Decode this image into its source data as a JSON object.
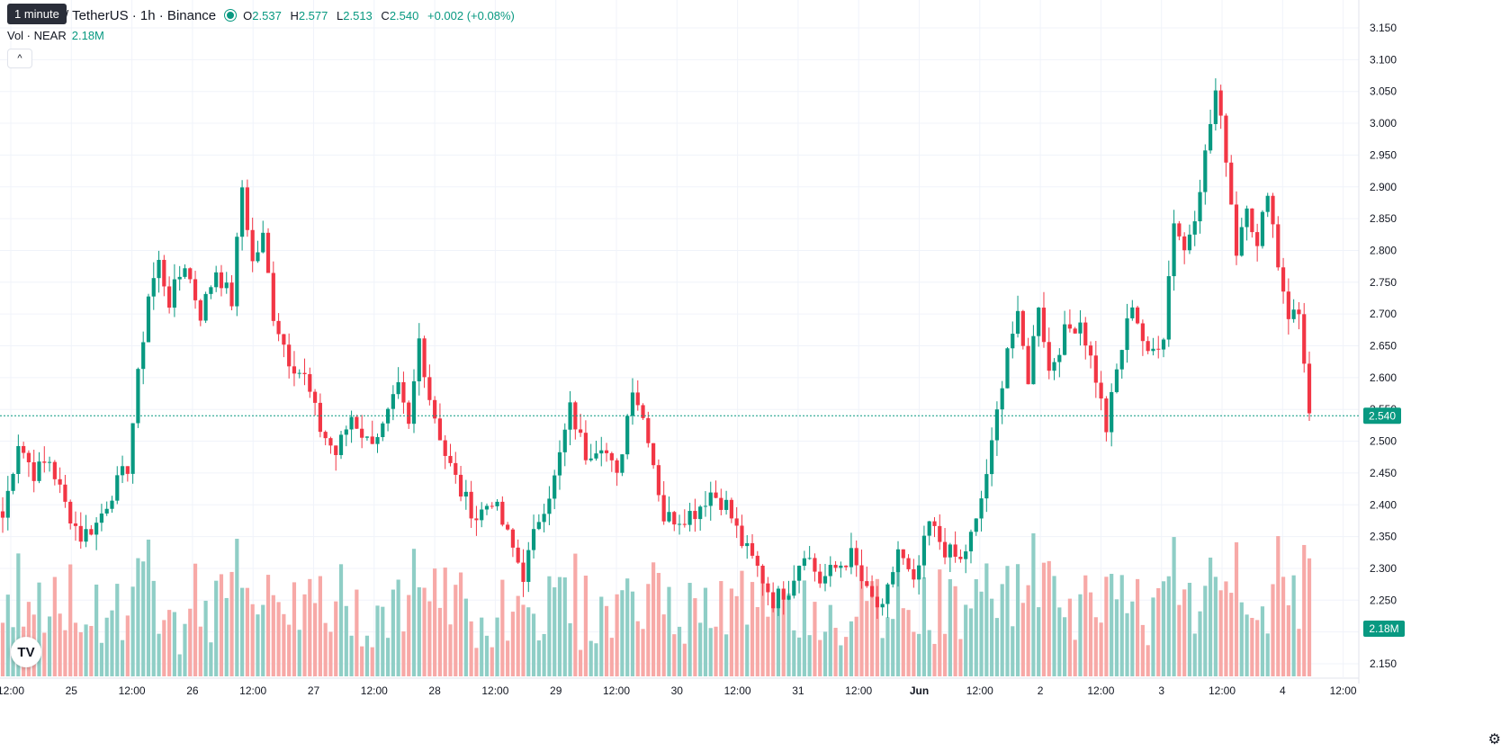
{
  "legend": {
    "symbol": "/ TetherUS · 1h · Binance",
    "tooltip": "1 minute",
    "o_label": "O",
    "o_value": "2.537",
    "h_label": "H",
    "h_value": "2.577",
    "l_label": "L",
    "l_value": "2.513",
    "c_label": "C",
    "c_value": "2.540",
    "change": "+0.002 (+0.08%)",
    "vol_label": "Vol · NEAR",
    "vol_value": "2.18M"
  },
  "colors": {
    "up": "#089981",
    "down": "#f23645",
    "up_vol": "#8fcec6",
    "down_vol": "#f7a9a7",
    "grid": "#f0f3fa"
  },
  "icons": {
    "collapse": "chevron-up-icon",
    "logo": "tradingview-logo-icon",
    "settings": "gear-icon"
  },
  "chart_data": {
    "type": "candlestick",
    "x_ticks": [
      "12:00",
      "25",
      "12:00",
      "26",
      "12:00",
      "27",
      "12:00",
      "28",
      "12:00",
      "29",
      "12:00",
      "30",
      "12:00",
      "31",
      "12:00",
      "Jun",
      "12:00",
      "2",
      "12:00",
      "3",
      "12:00",
      "4",
      "12:00"
    ],
    "y_ticks": [
      "3.150",
      "3.100",
      "3.050",
      "3.000",
      "2.950",
      "2.900",
      "2.850",
      "2.800",
      "2.750",
      "2.700",
      "2.650",
      "2.600",
      "2.550",
      "2.500",
      "2.450",
      "2.400",
      "2.350",
      "2.300",
      "2.250",
      "2.200",
      "2.150"
    ],
    "ylim": [
      2.14,
      3.16
    ],
    "last_price_label": "2.540",
    "last_price": 2.54,
    "last_volume_label": "2.18M",
    "anchors": [
      [
        0,
        2.38
      ],
      [
        3,
        2.5
      ],
      [
        6,
        2.45
      ],
      [
        9,
        2.47
      ],
      [
        12,
        2.4
      ],
      [
        15,
        2.35
      ],
      [
        18,
        2.37
      ],
      [
        21,
        2.42
      ],
      [
        24,
        2.46
      ],
      [
        26,
        2.6
      ],
      [
        28,
        2.73
      ],
      [
        30,
        2.78
      ],
      [
        32,
        2.72
      ],
      [
        35,
        2.78
      ],
      [
        38,
        2.7
      ],
      [
        41,
        2.77
      ],
      [
        44,
        2.72
      ],
      [
        46,
        2.9
      ],
      [
        48,
        2.78
      ],
      [
        50,
        2.82
      ],
      [
        52,
        2.7
      ],
      [
        55,
        2.63
      ],
      [
        58,
        2.6
      ],
      [
        61,
        2.52
      ],
      [
        64,
        2.48
      ],
      [
        67,
        2.54
      ],
      [
        70,
        2.5
      ],
      [
        73,
        2.52
      ],
      [
        76,
        2.58
      ],
      [
        78,
        2.52
      ],
      [
        80,
        2.66
      ],
      [
        82,
        2.57
      ],
      [
        85,
        2.48
      ],
      [
        88,
        2.42
      ],
      [
        91,
        2.38
      ],
      [
        94,
        2.41
      ],
      [
        97,
        2.35
      ],
      [
        100,
        2.29
      ],
      [
        103,
        2.38
      ],
      [
        106,
        2.44
      ],
      [
        109,
        2.55
      ],
      [
        112,
        2.48
      ],
      [
        115,
        2.5
      ],
      [
        118,
        2.44
      ],
      [
        121,
        2.59
      ],
      [
        124,
        2.51
      ],
      [
        127,
        2.38
      ],
      [
        130,
        2.38
      ],
      [
        133,
        2.39
      ],
      [
        136,
        2.42
      ],
      [
        139,
        2.4
      ],
      [
        142,
        2.34
      ],
      [
        145,
        2.3
      ],
      [
        148,
        2.25
      ],
      [
        151,
        2.27
      ],
      [
        154,
        2.33
      ],
      [
        157,
        2.28
      ],
      [
        160,
        2.3
      ],
      [
        163,
        2.32
      ],
      [
        166,
        2.26
      ],
      [
        169,
        2.23
      ],
      [
        172,
        2.33
      ],
      [
        175,
        2.27
      ],
      [
        178,
        2.37
      ],
      [
        181,
        2.33
      ],
      [
        184,
        2.31
      ],
      [
        187,
        2.37
      ],
      [
        190,
        2.49
      ],
      [
        193,
        2.65
      ],
      [
        195,
        2.69
      ],
      [
        197,
        2.6
      ],
      [
        199,
        2.72
      ],
      [
        201,
        2.61
      ],
      [
        204,
        2.67
      ],
      [
        207,
        2.69
      ],
      [
        210,
        2.6
      ],
      [
        212,
        2.52
      ],
      [
        214,
        2.61
      ],
      [
        217,
        2.72
      ],
      [
        220,
        2.63
      ],
      [
        223,
        2.67
      ],
      [
        225,
        2.85
      ],
      [
        227,
        2.8
      ],
      [
        229,
        2.86
      ],
      [
        231,
        2.95
      ],
      [
        233,
        3.05
      ],
      [
        235,
        2.95
      ],
      [
        237,
        2.8
      ],
      [
        239,
        2.88
      ],
      [
        241,
        2.8
      ],
      [
        243,
        2.9
      ],
      [
        245,
        2.78
      ],
      [
        247,
        2.7
      ],
      [
        249,
        2.7
      ],
      [
        250,
        2.63
      ],
      [
        251,
        2.54
      ]
    ],
    "total_candles": 252
  }
}
